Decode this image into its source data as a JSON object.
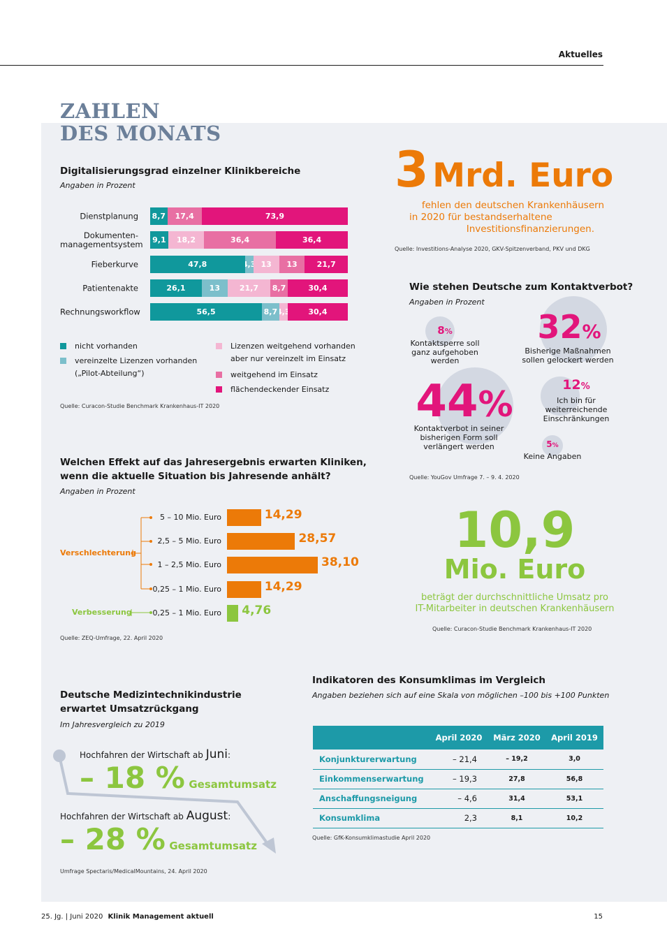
{
  "header": {
    "section": "Aktuelles"
  },
  "title": {
    "line1": "ZAHLEN",
    "line2": "DES MONATS"
  },
  "digital": {
    "title": "Digitalisierungsgrad einzelner Klinikbereiche",
    "subtitle": "Angaben in Prozent",
    "colors": {
      "nicht": "#10989c",
      "vereinzelt": "#7cbfcb",
      "lizenzen": "#f4b6d2",
      "weitgehend": "#e86fa3",
      "flaechendeckend": "#e2157b"
    },
    "rows": [
      {
        "label": "Dienstplanung",
        "segments": [
          {
            "v": 8.7,
            "t": "8,7",
            "c": "nicht"
          },
          {
            "v": 0,
            "t": "",
            "c": "vereinzelt"
          },
          {
            "v": 0,
            "t": "",
            "c": "lizenzen"
          },
          {
            "v": 17.4,
            "t": "17,4",
            "c": "weitgehend"
          },
          {
            "v": 73.9,
            "t": "73,9",
            "c": "flaechendeckend"
          }
        ]
      },
      {
        "label": "Dokumenten-\nmanagementsystem",
        "segments": [
          {
            "v": 9.1,
            "t": "9,1",
            "c": "nicht"
          },
          {
            "v": 0,
            "t": "",
            "c": "vereinzelt"
          },
          {
            "v": 18.2,
            "t": "18,2",
            "c": "lizenzen"
          },
          {
            "v": 36.4,
            "t": "36,4",
            "c": "weitgehend"
          },
          {
            "v": 36.4,
            "t": "36,4",
            "c": "flaechendeckend"
          }
        ]
      },
      {
        "label": "Fieberkurve",
        "segments": [
          {
            "v": 47.8,
            "t": "47,8",
            "c": "nicht"
          },
          {
            "v": 4.3,
            "t": "4,3",
            "c": "vereinzelt"
          },
          {
            "v": 13,
            "t": "13",
            "c": "lizenzen"
          },
          {
            "v": 13,
            "t": "13",
            "c": "weitgehend"
          },
          {
            "v": 21.7,
            "t": "21,7",
            "c": "flaechendeckend"
          }
        ]
      },
      {
        "label": "Patientenakte",
        "segments": [
          {
            "v": 26.1,
            "t": "26,1",
            "c": "nicht"
          },
          {
            "v": 13,
            "t": "13",
            "c": "vereinzelt"
          },
          {
            "v": 21.7,
            "t": "21,7",
            "c": "lizenzen"
          },
          {
            "v": 8.7,
            "t": "8,7",
            "c": "weitgehend"
          },
          {
            "v": 30.4,
            "t": "30,4",
            "c": "flaechendeckend"
          }
        ]
      },
      {
        "label": "Rechnungsworkflow",
        "segments": [
          {
            "v": 56.5,
            "t": "56,5",
            "c": "nicht"
          },
          {
            "v": 8.7,
            "t": "8,7",
            "c": "vereinzelt"
          },
          {
            "v": 4.3,
            "t": "4,3",
            "c": "lizenzen"
          },
          {
            "v": 0,
            "t": "",
            "c": "weitgehend"
          },
          {
            "v": 30.4,
            "t": "30,4",
            "c": "flaechendeckend"
          }
        ]
      }
    ],
    "legend": {
      "nicht": "nicht vorhanden",
      "vereinzelt_1": "vereinzelte Lizenzen vorhanden",
      "vereinzelt_2": "(„Pilot-Abteilung“)",
      "lizenzen_1": "Lizenzen weitgehend vorhanden",
      "lizenzen_2": "aber nur vereinzelt im Einsatz",
      "weitgehend": "weitgehend im Einsatz",
      "flaechendeckend": "flächendeckender Einsatz"
    },
    "source": "Quelle: Curacon-Studie Benchmark Krankenhaus-IT 2020"
  },
  "mrd": {
    "number": "3",
    "unit": "Mrd. Euro",
    "text1": "fehlen den deutschen Krankenhäusern",
    "text2": "in 2020 für bestandserhaltene",
    "text3": "Investitionsfinanzierungen.",
    "source": "Quelle:  Investitions-Analyse 2020, GKV-Spitzenverband, PKV und DKG"
  },
  "kontakt": {
    "title": "Wie stehen Deutsche zum Kontaktverbot?",
    "subtitle": "Angaben in Prozent",
    "items": [
      {
        "num": "8",
        "pct": "%",
        "l1": "Kontaktsperre soll",
        "l2": "ganz aufgehoben",
        "l3": "werden"
      },
      {
        "num": "32",
        "pct": "%",
        "l1": "Bisherige Maßnahmen",
        "l2": "sollen gelockert werden"
      },
      {
        "num": "44",
        "pct": "%",
        "l1": "Kontaktverbot in seiner",
        "l2": "bisherigen Form soll",
        "l3": "verlängert werden"
      },
      {
        "num": "12",
        "pct": "%",
        "l1": "Ich bin für",
        "l2": "weiterreichende",
        "l3": "Einschränkungen"
      },
      {
        "num": "5",
        "pct": "%",
        "l1": "Keine Angaben"
      }
    ],
    "source": "Quelle: YouGov Umfrage 7. – 9. 4. 2020"
  },
  "effekt": {
    "title1": "Welchen Effekt auf das Jahresergebnis erwarten Kliniken,",
    "title2": "wenn die aktuelle Situation bis Jahresende anhält?",
    "subtitle": "Angaben in Prozent",
    "group_bad": "Verschlechterung",
    "group_good": "Verbesserung",
    "source": "Quelle: ZEQ-Umfrage, 22. April 2020"
  },
  "chart_data": {
    "type": "bar",
    "categories": [
      "5 – 10 Mio. Euro",
      "2,5 – 5 Mio. Euro",
      "1 – 2,5 Mio. Euro",
      "0,25 – 1 Mio. Euro",
      "0,25 – 1 Mio. Euro"
    ],
    "values": [
      14.29,
      28.57,
      38.1,
      14.29,
      4.76
    ],
    "value_labels": [
      "14,29",
      "28,57",
      "38,10",
      "14,29",
      "4,76"
    ],
    "groups": [
      "Verschlechterung",
      "Verschlechterung",
      "Verschlechterung",
      "Verschlechterung",
      "Verbesserung"
    ],
    "colors": [
      "#ec7a08",
      "#ec7a08",
      "#ec7a08",
      "#ec7a08",
      "#8cc63f"
    ]
  },
  "umsatz": {
    "number": "10,9",
    "unit": "Mio. Euro",
    "text1": "beträgt der durchschnittliche Umsatz pro",
    "text2": "IT-Mitarbeiter in deutschen Krankenhäusern",
    "source": "Quelle: Curacon-Studie Benchmark Krankenhaus-IT 2020"
  },
  "medtech": {
    "title1": "Deutsche Medizintechnikindustrie",
    "title2": "erwartet Umsatzrückgang",
    "subtitle": "Im Jahresvergleich zu 2019",
    "s1_pre": "Hochfahren der Wirtschaft ab ",
    "s1_month": "Juni",
    "s1_post": ":",
    "s1_value": "– 18 %",
    "s1_label": "Gesamtumsatz",
    "s2_pre": "Hochfahren der Wirtschaft ab ",
    "s2_month": "August",
    "s2_post": ":",
    "s2_value": "– 28 %",
    "s2_label": "Gesamtumsatz",
    "source": "Umfrage Spectaris/MedicalMountains, 24. April 2020"
  },
  "konsum": {
    "title": "Indikatoren des Konsumklimas im Vergleich",
    "subtitle": "Angaben beziehen sich auf eine Skala von möglichen –100 bis +100 Punkten",
    "headers": [
      "",
      "April 2020",
      "März 2020",
      "April 2019"
    ],
    "rows": [
      [
        "Konjunkturerwartung",
        "– 21,4",
        "– 19,2",
        "3,0"
      ],
      [
        "Einkommenserwartung",
        "– 19,3",
        "27,8",
        "56,8"
      ],
      [
        "Anschaffungsneigung",
        "– 4,6",
        "31,4",
        "53,1"
      ],
      [
        "Konsumklima",
        "2,3",
        "8,1",
        "10,2"
      ]
    ],
    "source": "Quelle: GfK-Konsumklimastudie April 2020"
  },
  "footer": {
    "left": "25. Jg.  |  Juni 2020",
    "journal": "Klinik Management aktuell",
    "page": "15"
  }
}
